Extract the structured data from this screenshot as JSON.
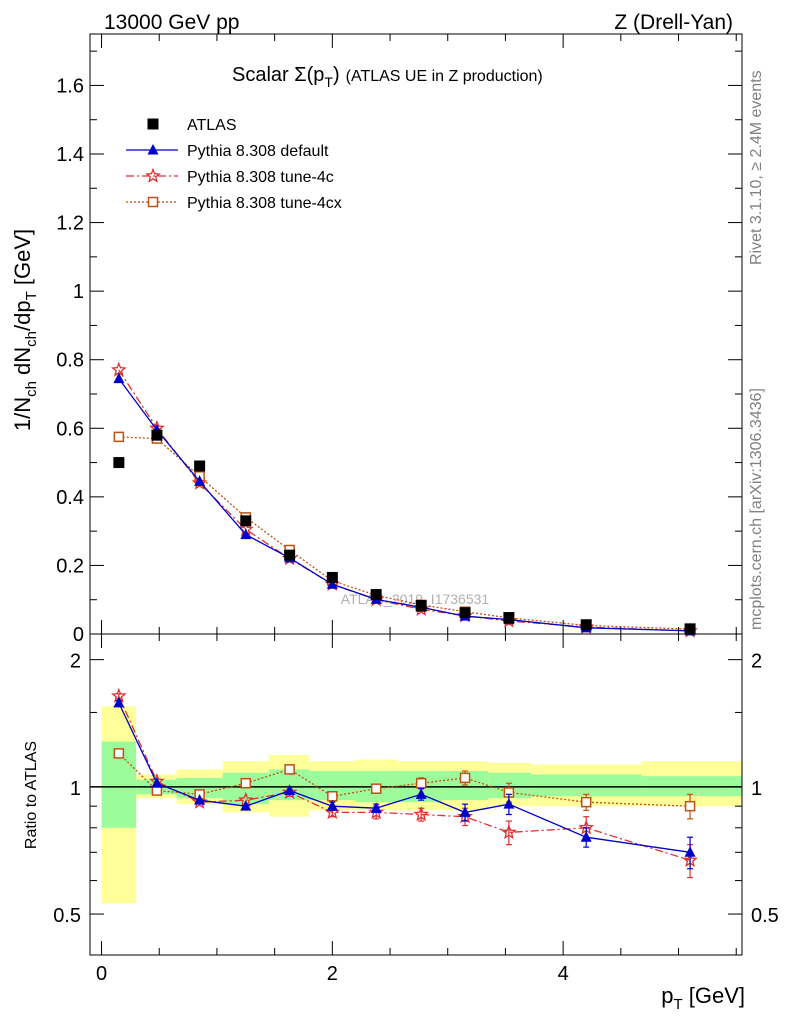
{
  "header": {
    "energy": "13000 GeV pp",
    "process": "Z (Drell-Yan)"
  },
  "side_text": {
    "rivet": "Rivet 3.1.10, ≥ 2.4M events",
    "mcplots": "mcplots.cern.ch [arXiv:1306.3436]"
  },
  "title": {
    "main": "Scalar Σ(p",
    "sub_T": "T",
    "close": ")",
    "rest": "(ATLAS UE in Z production)"
  },
  "watermark": "ATLAS_2019_I1736531",
  "chart_data": [
    {
      "type": "scatter",
      "panel": "main",
      "ylabel": "1/N_ch dN_ch/dp_T [GeV]",
      "ylim": [
        0,
        1.75
      ],
      "xlim": [
        -0.1,
        5.55
      ],
      "y_ticks": [
        "0",
        "0.2",
        "0.4",
        "0.6",
        "0.8",
        "1",
        "1.2",
        "1.4",
        "1.6"
      ],
      "y_tick_values": [
        0,
        0.2,
        0.4,
        0.6,
        0.8,
        1.0,
        1.2,
        1.4,
        1.6
      ],
      "legend_position": "top-left",
      "x": [
        0.15,
        0.48,
        0.85,
        1.25,
        1.63,
        2.0,
        2.38,
        2.77,
        3.15,
        3.53,
        4.2,
        5.1
      ],
      "series": [
        {
          "name": "ATLAS",
          "color": "#000000",
          "marker": "square-filled",
          "values": [
            0.5,
            0.58,
            0.49,
            0.33,
            0.23,
            0.165,
            0.115,
            0.083,
            0.062,
            0.048,
            0.027,
            0.015
          ]
        },
        {
          "name": "Pythia 8.308 default",
          "color": "#0000cc",
          "marker": "triangle-filled",
          "line": "solid",
          "values": [
            0.745,
            0.595,
            0.445,
            0.29,
            0.222,
            0.145,
            0.101,
            0.078,
            0.052,
            0.042,
            0.018,
            0.009
          ]
        },
        {
          "name": "Pythia 8.308 tune-4c",
          "color": "#e03030",
          "marker": "star-open",
          "line": "dashdot",
          "values": [
            0.77,
            0.6,
            0.44,
            0.305,
            0.22,
            0.145,
            0.1,
            0.072,
            0.053,
            0.038,
            0.02,
            0.009
          ]
        },
        {
          "name": "Pythia 8.308 tune-4cx",
          "color": "#c05010",
          "marker": "square-open",
          "line": "dotted",
          "values": [
            0.575,
            0.57,
            0.46,
            0.34,
            0.245,
            0.155,
            0.113,
            0.085,
            0.065,
            0.047,
            0.025,
            0.014
          ]
        }
      ]
    },
    {
      "type": "line",
      "panel": "ratio",
      "ylabel": "Ratio to ATLAS",
      "xlabel": "p_T [GeV]",
      "ylim": [
        0.4,
        2.3
      ],
      "xlim": [
        -0.1,
        5.55
      ],
      "y_ticks": [
        "0.5",
        "1",
        "2"
      ],
      "y_tick_values": [
        0.5,
        1,
        2
      ],
      "x_ticks": [
        "0",
        "2",
        "4"
      ],
      "x_tick_values": [
        0,
        2,
        4
      ],
      "x": [
        0.15,
        0.48,
        0.85,
        1.25,
        1.63,
        2.0,
        2.38,
        2.77,
        3.15,
        3.53,
        4.2,
        5.1
      ],
      "bin_edges": [
        0.0,
        0.3,
        0.65,
        1.05,
        1.45,
        1.8,
        2.2,
        2.57,
        2.95,
        3.35,
        3.72,
        4.68,
        5.55
      ],
      "bands": {
        "green_low": [
          0.8,
          0.96,
          0.94,
          0.91,
          0.93,
          0.93,
          0.92,
          0.92,
          0.93,
          0.94,
          0.95,
          0.95
        ],
        "green_high": [
          1.28,
          1.04,
          1.05,
          1.08,
          1.1,
          1.09,
          1.09,
          1.09,
          1.09,
          1.08,
          1.07,
          1.06
        ],
        "yellow_low": [
          0.53,
          0.94,
          0.91,
          0.87,
          0.85,
          0.88,
          0.88,
          0.88,
          0.88,
          0.9,
          0.9,
          0.9
        ],
        "yellow_high": [
          1.55,
          1.07,
          1.1,
          1.15,
          1.19,
          1.15,
          1.16,
          1.15,
          1.15,
          1.14,
          1.13,
          1.15
        ],
        "green_color": "#9cfc9c",
        "yellow_color": "#ffff99"
      },
      "series": [
        {
          "name": "Pythia 8.308 default",
          "color": "#0000cc",
          "marker": "triangle-filled",
          "line": "solid",
          "values": [
            1.58,
            1.02,
            0.93,
            0.9,
            0.98,
            0.9,
            0.89,
            0.96,
            0.87,
            0.91,
            0.76,
            0.7
          ],
          "errors": [
            0.02,
            0.01,
            0.01,
            0.01,
            0.01,
            0.02,
            0.02,
            0.03,
            0.04,
            0.05,
            0.04,
            0.06
          ]
        },
        {
          "name": "Pythia 8.308 tune-4c",
          "color": "#e03030",
          "marker": "star-open",
          "line": "dashdot",
          "values": [
            1.64,
            1.03,
            0.92,
            0.93,
            0.97,
            0.87,
            0.87,
            0.86,
            0.85,
            0.78,
            0.8,
            0.67
          ],
          "errors": [
            0.02,
            0.01,
            0.01,
            0.01,
            0.02,
            0.02,
            0.03,
            0.03,
            0.04,
            0.05,
            0.05,
            0.06
          ]
        },
        {
          "name": "Pythia 8.308 tune-4cx",
          "color": "#c05010",
          "marker": "square-open",
          "line": "dotted",
          "values": [
            1.2,
            0.98,
            0.96,
            1.02,
            1.1,
            0.95,
            0.99,
            1.02,
            1.05,
            0.97,
            0.92,
            0.9
          ],
          "errors": [
            0.02,
            0.01,
            0.01,
            0.01,
            0.02,
            0.02,
            0.02,
            0.03,
            0.04,
            0.05,
            0.04,
            0.06
          ]
        }
      ]
    }
  ]
}
